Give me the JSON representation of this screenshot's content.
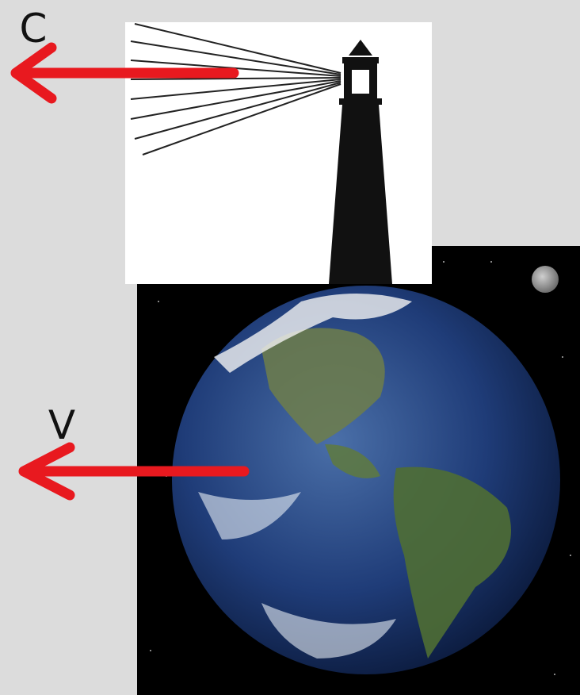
{
  "arrows": [
    {
      "label": "C"
    },
    {
      "label": "V"
    }
  ]
}
